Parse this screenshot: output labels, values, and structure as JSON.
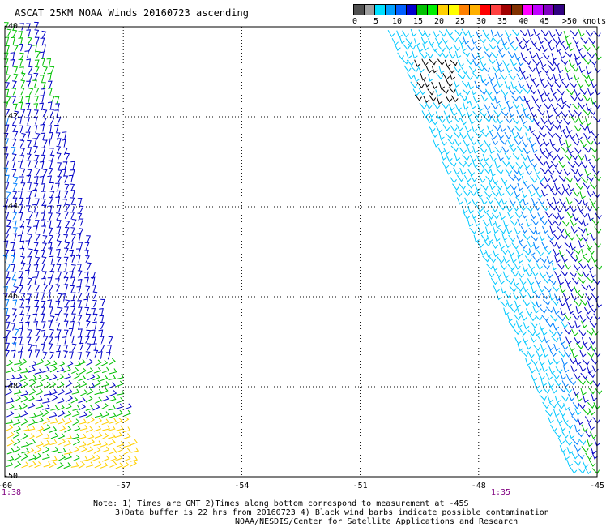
{
  "header": {
    "title": "ASCAT 25KM NOAA Winds 20160723 ascending"
  },
  "legend": {
    "unit_label": ">50 knots",
    "swatches": [
      {
        "color": "#505050"
      },
      {
        "color": "#a0a0a0"
      },
      {
        "color": "#00e0ff"
      },
      {
        "color": "#00a0ff"
      },
      {
        "color": "#0060ff"
      },
      {
        "color": "#0000d0"
      },
      {
        "color": "#00c000"
      },
      {
        "color": "#00f000"
      },
      {
        "color": "#ffd000"
      },
      {
        "color": "#ffff00"
      },
      {
        "color": "#ff8000"
      },
      {
        "color": "#ffb000"
      },
      {
        "color": "#ff0000"
      },
      {
        "color": "#ff4040"
      },
      {
        "color": "#a00000"
      },
      {
        "color": "#803000"
      },
      {
        "color": "#ff00ff"
      },
      {
        "color": "#c000ff"
      },
      {
        "color": "#8000c0"
      },
      {
        "color": "#300080"
      }
    ],
    "tick_labels": [
      "0",
      "5",
      "10",
      "15",
      "20",
      "25",
      "30",
      "35",
      "40",
      "45"
    ]
  },
  "map": {
    "lon_labels": [
      "-60",
      "-57",
      "-54",
      "-51",
      "-48",
      "-45"
    ],
    "lat_labels": [
      "-40",
      "-42",
      "-44",
      "-46",
      "-48",
      "-50"
    ],
    "lon_range": [
      -60,
      -45
    ],
    "lat_range": [
      -50,
      -40
    ],
    "gridlines": true,
    "pass_times": [
      "1:38",
      "1:35"
    ]
  },
  "notes": {
    "line1": "Note: 1) Times are GMT 2)Times along bottom correspond to measurement at -45S",
    "line2": "3)Data buffer is 22 hrs from 20160723 4) Black wind barbs indicate possible contamination",
    "line3": "NOAA/NESDIS/Center for Satellite Applications and Research"
  },
  "colors": {
    "time_label": "#800080",
    "barb_light_blue": "#00c8ff",
    "barb_mid_blue": "#0080ff",
    "barb_dark_blue": "#0000c8",
    "barb_green": "#00c000",
    "barb_yellow": "#ffd000",
    "barb_contaminated": "#000000"
  }
}
